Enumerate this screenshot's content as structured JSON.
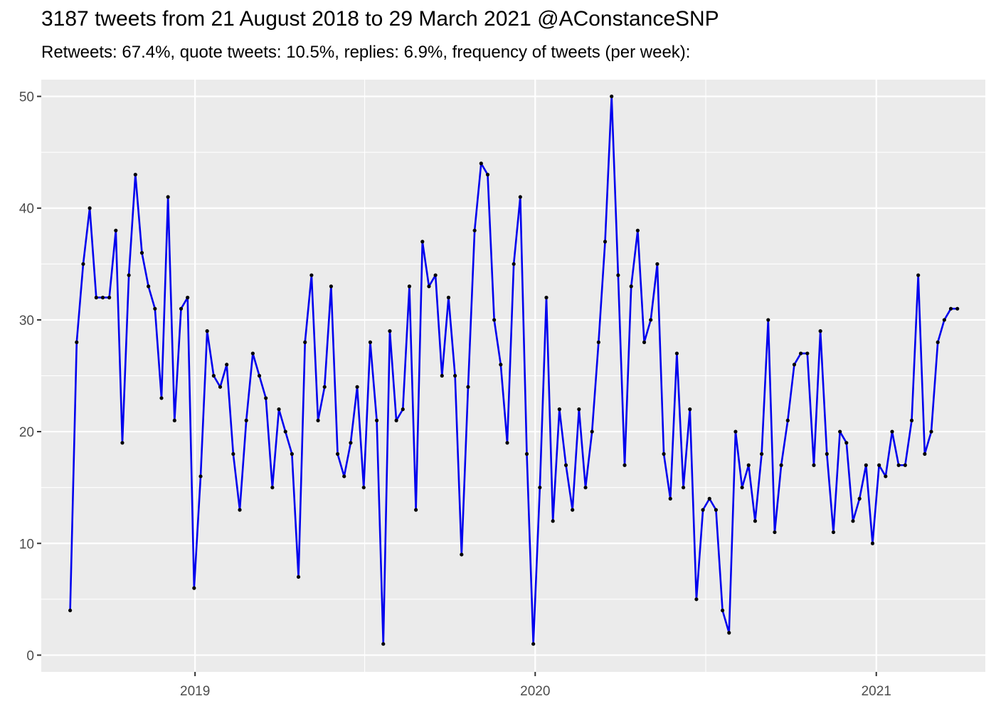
{
  "title": "3187 tweets from 21 August 2018 to 29 March 2021 @AConstanceSNP",
  "subtitle": "Retweets: 67.4%, quote tweets: 10.5%, replies: 6.9%, frequency of tweets (per week):",
  "colors": {
    "panel_background": "#ebebeb",
    "grid": "#ffffff",
    "line": "#0000ee",
    "point": "#000000",
    "tick_label": "#4d4d4d"
  },
  "chart_data": {
    "type": "line",
    "title": "3187 tweets from 21 August 2018 to 29 March 2021 @AConstanceSNP",
    "subtitle": "Retweets: 67.4%, quote tweets: 10.5%, replies: 6.9%, frequency of tweets (per week):",
    "xlabel": "",
    "ylabel": "",
    "x_type": "date",
    "x_start": "2018-08-20",
    "x_step_days": 7,
    "xlim": [
      "2018-07-20",
      "2021-04-28"
    ],
    "ylim": [
      -1.5,
      51.5
    ],
    "x_ticks": [
      "2019-01-01",
      "2020-01-01",
      "2021-01-01"
    ],
    "x_tick_labels": [
      "2019",
      "2020",
      "2021"
    ],
    "x_minor_ticks": [
      "2018-07-02",
      "2019-07-02",
      "2020-07-02"
    ],
    "y_ticks": [
      0,
      10,
      20,
      30,
      40,
      50
    ],
    "y_tick_labels": [
      "0",
      "10",
      "20",
      "30",
      "40",
      "50"
    ],
    "y_minor_ticks": [
      5,
      15,
      25,
      35,
      45
    ],
    "grid": true,
    "legend": "none",
    "series": [
      {
        "values": [
          4,
          28,
          35,
          40,
          32,
          32,
          32,
          38,
          19,
          34,
          43,
          36,
          33,
          31,
          23,
          41,
          21,
          31,
          32,
          6,
          16,
          29,
          25,
          24,
          26,
          18,
          13,
          21,
          27,
          25,
          23,
          15,
          22,
          20,
          18,
          7,
          28,
          34,
          21,
          24,
          33,
          18,
          16,
          19,
          24,
          15,
          28,
          21,
          1,
          29,
          21,
          22,
          33,
          13,
          37,
          33,
          34,
          25,
          32,
          25,
          9,
          24,
          38,
          44,
          43,
          30,
          26,
          19,
          35,
          41,
          18,
          1,
          15,
          32,
          12,
          22,
          17,
          13,
          22,
          15,
          20,
          28,
          37,
          50,
          34,
          17,
          33,
          38,
          28,
          30,
          35,
          18,
          14,
          27,
          15,
          22,
          5,
          13,
          14,
          13,
          4,
          2,
          20,
          15,
          17,
          12,
          18,
          30,
          11,
          17,
          21,
          26,
          27,
          27,
          17,
          29,
          18,
          11,
          20,
          19,
          12,
          14,
          17,
          10,
          17,
          16,
          20,
          17,
          17,
          21,
          34,
          18,
          20,
          28,
          30,
          31,
          31
        ]
      }
    ]
  }
}
